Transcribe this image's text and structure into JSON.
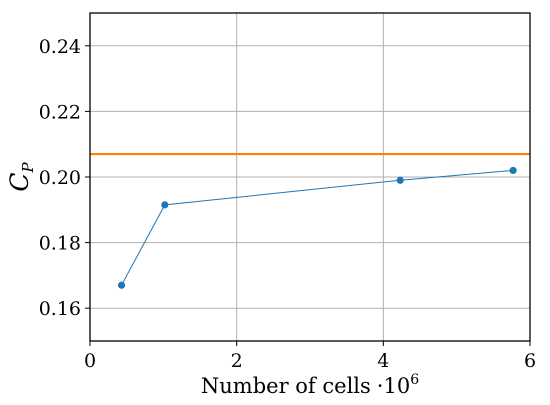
{
  "chart_data": {
    "type": "line",
    "xlabel": "Number of cells",
    "xlabel_factor": "·10",
    "xlabel_exponent": "6",
    "ylabel_main": "C",
    "ylabel_sub": "P",
    "xlim": [
      0,
      6
    ],
    "ylim": [
      0.15,
      0.25
    ],
    "xticks": [
      0,
      2,
      4,
      6
    ],
    "xtick_labels": [
      "0",
      "2",
      "4",
      "6"
    ],
    "yticks": [
      0.16,
      0.18,
      0.2,
      0.22,
      0.24
    ],
    "ytick_labels": [
      "0.16",
      "0.18",
      "0.20",
      "0.22",
      "0.24"
    ],
    "grid": true,
    "series": [
      {
        "x": [
          0.43,
          1.02,
          4.23,
          5.77
        ],
        "y": [
          0.167,
          0.1915,
          0.199,
          0.202
        ],
        "color": "#1f77b4",
        "marker": "circle"
      }
    ],
    "hlines": [
      {
        "y": 0.207,
        "color": "#ff7f0e"
      }
    ]
  }
}
